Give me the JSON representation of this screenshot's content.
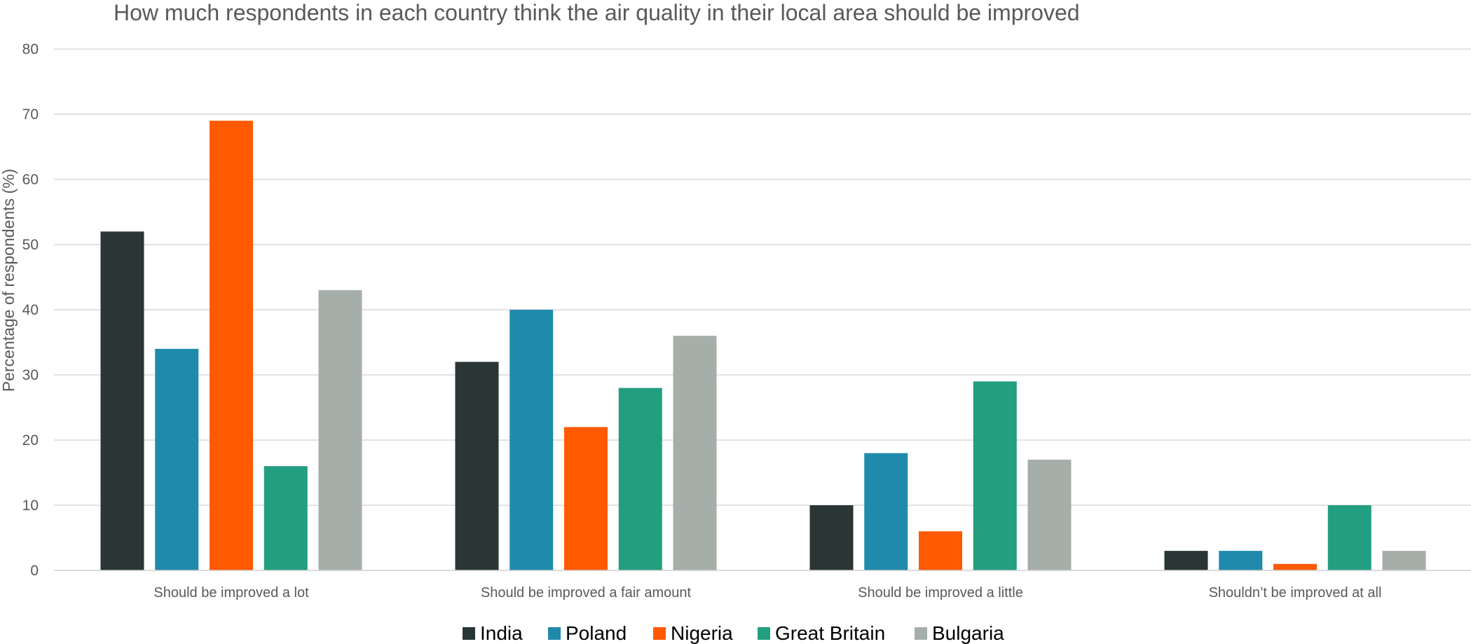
{
  "chart_data": {
    "type": "bar",
    "title": "How much respondents in each country think the air quality in their local area should be improved",
    "xlabel": "",
    "ylabel": "Percentage of respondents (%)",
    "ylim": [
      0,
      80
    ],
    "yticks": [
      0,
      10,
      20,
      30,
      40,
      50,
      60,
      70,
      80
    ],
    "grid": true,
    "legend_position": "bottom",
    "categories": [
      "Should be improved a lot",
      "Should be improved a fair amount",
      "Should be improved a little",
      "Shouldn’t be improved at all"
    ],
    "series": [
      {
        "name": "India",
        "color": "#2a3536",
        "values": [
          52,
          32,
          10,
          3
        ]
      },
      {
        "name": "Poland",
        "color": "#1f8aab",
        "values": [
          34,
          40,
          18,
          3
        ]
      },
      {
        "name": "Nigeria",
        "color": "#ff5a00",
        "values": [
          69,
          22,
          6,
          1
        ]
      },
      {
        "name": "Great Britain",
        "color": "#229e80",
        "values": [
          16,
          28,
          29,
          10
        ]
      },
      {
        "name": "Bulgaria",
        "color": "#a6aeaa",
        "values": [
          43,
          36,
          17,
          3
        ]
      }
    ]
  }
}
